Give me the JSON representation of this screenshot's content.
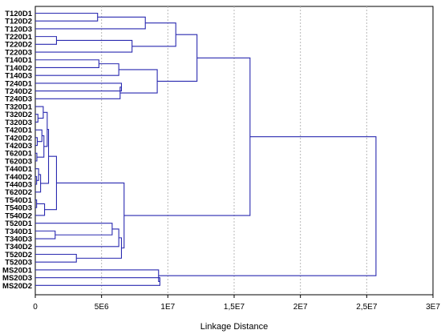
{
  "chart_data": {
    "type": "dendrogram",
    "orientation": "horizontal",
    "xlabel": "Linkage Distance",
    "xlim": [
      0,
      30000000
    ],
    "xticks": [
      0,
      5000000,
      10000000,
      15000000,
      20000000,
      25000000,
      30000000
    ],
    "xtick_labels": [
      "0",
      "5E6",
      "1E7",
      "1,5E7",
      "2E7",
      "2,5E7",
      "3E7"
    ],
    "grid": "vertical dashed",
    "leaves": [
      "T120D1",
      "T120D2",
      "T120D3",
      "T220D1",
      "T220D2",
      "T220D3",
      "T140D1",
      "T140D2",
      "T140D3",
      "T240D1",
      "T240D2",
      "T240D3",
      "T320D1",
      "T320D2",
      "T320D3",
      "T420D1",
      "T420D2",
      "T420D3",
      "T620D1",
      "T620D3",
      "T440D1",
      "T440D2",
      "T440D3",
      "T620D2",
      "T540D1",
      "T540D3",
      "T540D2",
      "T520D1",
      "T340D1",
      "T340D3",
      "T340D2",
      "T520D2",
      "T520D3",
      "MS20D1",
      "MS20D3",
      "MS20D2"
    ],
    "merges": [
      {
        "a": 0,
        "b": 1,
        "height": 4700000
      },
      {
        "a": 36,
        "b": 2,
        "height": 8300000
      },
      {
        "a": 3,
        "b": 4,
        "height": 1600000
      },
      {
        "a": 38,
        "b": 5,
        "height": 7300000
      },
      {
        "a": 37,
        "b": 39,
        "height": 10600000
      },
      {
        "a": 6,
        "b": 7,
        "height": 4800000
      },
      {
        "a": 41,
        "b": 8,
        "height": 6300000
      },
      {
        "a": 9,
        "b": 10,
        "height": 6500000
      },
      {
        "a": 43,
        "b": 11,
        "height": 6400000
      },
      {
        "a": 42,
        "b": 44,
        "height": 9200000
      },
      {
        "a": 40,
        "b": 45,
        "height": 12200000
      },
      {
        "a": 13,
        "b": 14,
        "height": 200000
      },
      {
        "a": 12,
        "b": 47,
        "height": 600000
      },
      {
        "a": 16,
        "b": 17,
        "height": 150000
      },
      {
        "a": 15,
        "b": 49,
        "height": 500000
      },
      {
        "a": 18,
        "b": 19,
        "height": 120000
      },
      {
        "a": 50,
        "b": 51,
        "height": 650000
      },
      {
        "a": 48,
        "b": 52,
        "height": 900000
      },
      {
        "a": 21,
        "b": 22,
        "height": 100000
      },
      {
        "a": 20,
        "b": 54,
        "height": 250000
      },
      {
        "a": 55,
        "b": 23,
        "height": 400000
      },
      {
        "a": 53,
        "b": 56,
        "height": 1000000
      },
      {
        "a": 24,
        "b": 25,
        "height": 100000
      },
      {
        "a": 58,
        "b": 26,
        "height": 700000
      },
      {
        "a": 57,
        "b": 59,
        "height": 1600000
      },
      {
        "a": 28,
        "b": 29,
        "height": 1500000
      },
      {
        "a": 27,
        "b": 61,
        "height": 5800000
      },
      {
        "a": 62,
        "b": 30,
        "height": 6300000
      },
      {
        "a": 31,
        "b": 32,
        "height": 3100000
      },
      {
        "a": 63,
        "b": 64,
        "height": 6500000
      },
      {
        "a": 60,
        "b": 65,
        "height": 6700000
      },
      {
        "a": 46,
        "b": 66,
        "height": 16200000
      },
      {
        "a": 34,
        "b": 35,
        "height": 9400000
      },
      {
        "a": 33,
        "b": 68,
        "height": 9300000
      },
      {
        "a": 67,
        "b": 69,
        "height": 25700000
      }
    ],
    "colors": {
      "lines": "#2a2ab0",
      "axes": "#000000",
      "grid": "#b8b8b8",
      "background": "#ffffff"
    }
  }
}
